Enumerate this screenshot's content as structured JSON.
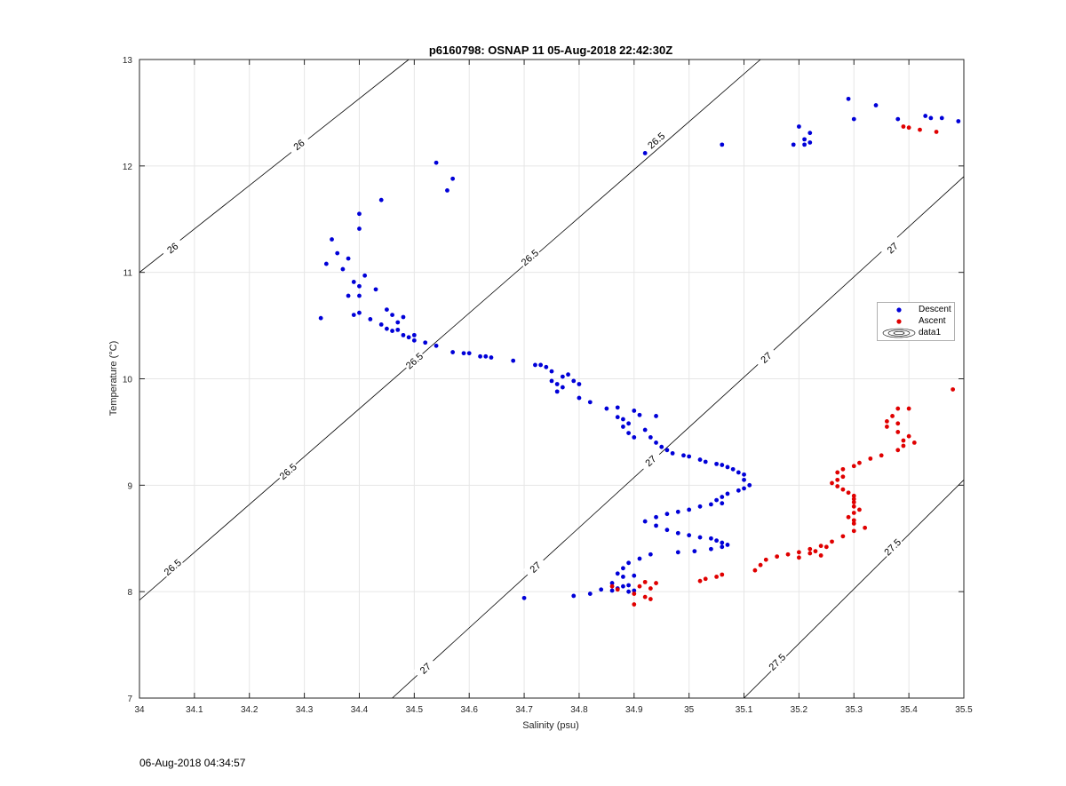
{
  "window": {
    "timestamp": "06-Aug-2018 04:34:57"
  },
  "colors": {
    "descent": "#0000d8",
    "ascent": "#e00000",
    "grid": "#e6e6e6",
    "contour": "#000000"
  },
  "chart_data": {
    "type": "scatter",
    "title": "p6160798: OSNAP 11 05-Aug-2018 22:42:30Z",
    "xlabel": "Salinity (psu)",
    "ylabel": "Temperature (°C)",
    "xlim": [
      34,
      35.5
    ],
    "ylim": [
      7,
      13
    ],
    "grid": true,
    "legend_position": "right",
    "x_ticks": [
      "34",
      "34.1",
      "34.2",
      "34.3",
      "34.4",
      "34.5",
      "34.6",
      "34.7",
      "34.8",
      "34.9",
      "35",
      "35.1",
      "35.2",
      "35.3",
      "35.4",
      "35.5"
    ],
    "y_ticks": [
      "7",
      "8",
      "9",
      "10",
      "11",
      "12",
      "13"
    ],
    "contours": [
      {
        "label": "26",
        "level": 26.0,
        "p1": [
          34.0,
          11.0
        ],
        "p2": [
          34.49,
          13.0
        ],
        "labels_at": [
          [
            34.06,
            11.23
          ],
          [
            34.29,
            12.2
          ]
        ]
      },
      {
        "label": "26.5",
        "level": 26.5,
        "p1": [
          34.0,
          7.92
        ],
        "p2": [
          35.13,
          13.0
        ],
        "labels_at": [
          [
            34.06,
            8.23
          ],
          [
            34.27,
            9.13
          ],
          [
            34.5,
            10.17
          ],
          [
            34.71,
            11.14
          ],
          [
            34.94,
            12.24
          ]
        ]
      },
      {
        "label": "27",
        "level": 27.0,
        "p1": [
          34.46,
          7.0
        ],
        "p2": [
          35.5,
          11.9
        ],
        "labels_at": [
          [
            34.52,
            7.28
          ],
          [
            34.72,
            8.23
          ],
          [
            34.93,
            9.23
          ],
          [
            35.14,
            10.2
          ],
          [
            35.37,
            11.23
          ]
        ]
      },
      {
        "label": "27.5",
        "level": 27.5,
        "p1": [
          35.1,
          7.0
        ],
        "p2": [
          35.5,
          9.05
        ],
        "labels_at": [
          [
            35.16,
            7.34
          ],
          [
            35.37,
            8.42
          ]
        ]
      }
    ],
    "series": [
      {
        "name": "Descent",
        "color": "#0000d8",
        "points": [
          [
            34.33,
            10.57
          ],
          [
            34.34,
            11.08
          ],
          [
            34.35,
            11.31
          ],
          [
            34.36,
            11.18
          ],
          [
            34.37,
            11.03
          ],
          [
            34.38,
            11.13
          ],
          [
            34.38,
            10.78
          ],
          [
            34.39,
            10.91
          ],
          [
            34.4,
            10.87
          ],
          [
            34.4,
            10.78
          ],
          [
            34.4,
            11.41
          ],
          [
            34.4,
            11.55
          ],
          [
            34.39,
            10.6
          ],
          [
            34.4,
            10.62
          ],
          [
            34.41,
            10.97
          ],
          [
            34.42,
            10.56
          ],
          [
            34.43,
            10.84
          ],
          [
            34.44,
            11.68
          ],
          [
            34.44,
            10.51
          ],
          [
            34.45,
            10.65
          ],
          [
            34.45,
            10.47
          ],
          [
            34.46,
            10.6
          ],
          [
            34.46,
            10.45
          ],
          [
            34.47,
            10.53
          ],
          [
            34.47,
            10.46
          ],
          [
            34.48,
            10.41
          ],
          [
            34.48,
            10.58
          ],
          [
            34.49,
            10.39
          ],
          [
            34.5,
            10.41
          ],
          [
            34.5,
            10.36
          ],
          [
            34.52,
            10.34
          ],
          [
            34.54,
            10.31
          ],
          [
            34.54,
            12.03
          ],
          [
            34.56,
            11.77
          ],
          [
            34.57,
            11.88
          ],
          [
            34.57,
            10.25
          ],
          [
            34.59,
            10.24
          ],
          [
            34.6,
            10.24
          ],
          [
            34.62,
            10.21
          ],
          [
            34.63,
            10.21
          ],
          [
            34.64,
            10.2
          ],
          [
            34.68,
            10.17
          ],
          [
            34.72,
            10.13
          ],
          [
            34.73,
            10.13
          ],
          [
            34.74,
            10.11
          ],
          [
            34.75,
            10.07
          ],
          [
            34.75,
            9.98
          ],
          [
            34.76,
            9.95
          ],
          [
            34.77,
            9.92
          ],
          [
            34.76,
            9.88
          ],
          [
            34.77,
            10.02
          ],
          [
            34.78,
            10.04
          ],
          [
            34.79,
            9.98
          ],
          [
            34.8,
            9.95
          ],
          [
            34.8,
            9.82
          ],
          [
            34.82,
            9.78
          ],
          [
            34.85,
            9.72
          ],
          [
            34.87,
            9.73
          ],
          [
            34.87,
            9.64
          ],
          [
            34.88,
            9.62
          ],
          [
            34.88,
            9.55
          ],
          [
            34.89,
            9.49
          ],
          [
            34.9,
            9.45
          ],
          [
            34.89,
            9.58
          ],
          [
            34.9,
            9.7
          ],
          [
            34.91,
            9.66
          ],
          [
            34.92,
            9.52
          ],
          [
            34.94,
            9.65
          ],
          [
            34.93,
            9.45
          ],
          [
            34.94,
            9.4
          ],
          [
            34.95,
            9.36
          ],
          [
            34.96,
            9.33
          ],
          [
            34.97,
            9.3
          ],
          [
            34.99,
            9.28
          ],
          [
            35.0,
            9.27
          ],
          [
            35.02,
            9.24
          ],
          [
            35.03,
            9.22
          ],
          [
            35.05,
            9.2
          ],
          [
            35.06,
            9.19
          ],
          [
            35.07,
            9.17
          ],
          [
            35.08,
            9.15
          ],
          [
            35.09,
            9.12
          ],
          [
            35.1,
            9.1
          ],
          [
            35.1,
            9.05
          ],
          [
            35.11,
            9.0
          ],
          [
            35.1,
            8.97
          ],
          [
            35.09,
            8.95
          ],
          [
            35.07,
            8.92
          ],
          [
            35.06,
            8.89
          ],
          [
            35.05,
            8.86
          ],
          [
            35.06,
            8.83
          ],
          [
            35.04,
            8.82
          ],
          [
            35.02,
            8.8
          ],
          [
            35.0,
            8.77
          ],
          [
            34.98,
            8.75
          ],
          [
            34.96,
            8.73
          ],
          [
            34.94,
            8.7
          ],
          [
            34.92,
            8.66
          ],
          [
            34.94,
            8.62
          ],
          [
            34.96,
            8.58
          ],
          [
            34.98,
            8.55
          ],
          [
            35.0,
            8.53
          ],
          [
            35.02,
            8.51
          ],
          [
            35.04,
            8.5
          ],
          [
            35.05,
            8.48
          ],
          [
            35.06,
            8.46
          ],
          [
            35.07,
            8.44
          ],
          [
            35.06,
            8.42
          ],
          [
            35.04,
            8.4
          ],
          [
            35.01,
            8.38
          ],
          [
            34.98,
            8.37
          ],
          [
            34.93,
            8.35
          ],
          [
            34.91,
            8.31
          ],
          [
            34.89,
            8.27
          ],
          [
            34.88,
            8.22
          ],
          [
            34.87,
            8.17
          ],
          [
            34.88,
            8.14
          ],
          [
            34.86,
            8.08
          ],
          [
            34.88,
            8.05
          ],
          [
            34.87,
            8.03
          ],
          [
            34.86,
            8.01
          ],
          [
            34.89,
            8.0
          ],
          [
            34.9,
            8.01
          ],
          [
            34.89,
            8.06
          ],
          [
            34.9,
            8.15
          ],
          [
            34.84,
            8.02
          ],
          [
            34.82,
            7.98
          ],
          [
            34.79,
            7.96
          ],
          [
            34.7,
            7.94
          ],
          [
            34.92,
            12.12
          ],
          [
            35.06,
            12.2
          ],
          [
            35.19,
            12.2
          ],
          [
            35.2,
            12.37
          ],
          [
            35.21,
            12.25
          ],
          [
            35.22,
            12.22
          ],
          [
            35.22,
            12.31
          ],
          [
            35.21,
            12.2
          ],
          [
            35.29,
            12.63
          ],
          [
            35.3,
            12.44
          ],
          [
            35.34,
            12.57
          ],
          [
            35.38,
            12.44
          ],
          [
            35.43,
            12.47
          ],
          [
            35.44,
            12.45
          ],
          [
            35.46,
            12.45
          ],
          [
            35.49,
            12.42
          ]
        ]
      },
      {
        "name": "Ascent",
        "color": "#e00000",
        "points": [
          [
            35.48,
            9.9
          ],
          [
            35.4,
            9.72
          ],
          [
            35.38,
            9.72
          ],
          [
            35.37,
            9.65
          ],
          [
            35.36,
            9.6
          ],
          [
            35.38,
            9.58
          ],
          [
            35.38,
            9.5
          ],
          [
            35.36,
            9.55
          ],
          [
            35.4,
            9.46
          ],
          [
            35.39,
            9.42
          ],
          [
            35.41,
            9.4
          ],
          [
            35.39,
            9.37
          ],
          [
            35.38,
            9.33
          ],
          [
            35.35,
            9.28
          ],
          [
            35.33,
            9.25
          ],
          [
            35.31,
            9.21
          ],
          [
            35.3,
            9.18
          ],
          [
            35.28,
            9.15
          ],
          [
            35.27,
            9.12
          ],
          [
            35.28,
            9.08
          ],
          [
            35.27,
            9.05
          ],
          [
            35.26,
            9.02
          ],
          [
            35.27,
            8.99
          ],
          [
            35.28,
            8.96
          ],
          [
            35.29,
            8.93
          ],
          [
            35.3,
            8.9
          ],
          [
            35.3,
            8.87
          ],
          [
            35.3,
            8.84
          ],
          [
            35.3,
            8.8
          ],
          [
            35.31,
            8.77
          ],
          [
            35.3,
            8.74
          ],
          [
            35.29,
            8.7
          ],
          [
            35.3,
            8.67
          ],
          [
            35.3,
            8.64
          ],
          [
            35.32,
            8.6
          ],
          [
            35.3,
            8.57
          ],
          [
            35.28,
            8.52
          ],
          [
            35.26,
            8.47
          ],
          [
            35.24,
            8.43
          ],
          [
            35.22,
            8.4
          ],
          [
            35.2,
            8.37
          ],
          [
            35.18,
            8.35
          ],
          [
            35.16,
            8.33
          ],
          [
            35.14,
            8.3
          ],
          [
            35.13,
            8.25
          ],
          [
            35.12,
            8.2
          ],
          [
            35.22,
            8.36
          ],
          [
            35.23,
            8.38
          ],
          [
            35.24,
            8.34
          ],
          [
            35.2,
            8.32
          ],
          [
            35.25,
            8.42
          ],
          [
            35.06,
            8.16
          ],
          [
            35.05,
            8.14
          ],
          [
            35.03,
            8.12
          ],
          [
            35.02,
            8.1
          ],
          [
            34.94,
            8.08
          ],
          [
            34.92,
            8.09
          ],
          [
            34.91,
            8.05
          ],
          [
            34.93,
            8.03
          ],
          [
            34.9,
            7.98
          ],
          [
            34.92,
            7.95
          ],
          [
            34.93,
            7.93
          ],
          [
            34.9,
            7.88
          ],
          [
            34.87,
            8.02
          ],
          [
            34.86,
            8.05
          ],
          [
            35.4,
            12.36
          ],
          [
            35.42,
            12.34
          ],
          [
            35.45,
            12.32
          ],
          [
            35.39,
            12.37
          ]
        ]
      }
    ],
    "legend": [
      "Descent",
      "Ascent",
      "data1"
    ]
  }
}
